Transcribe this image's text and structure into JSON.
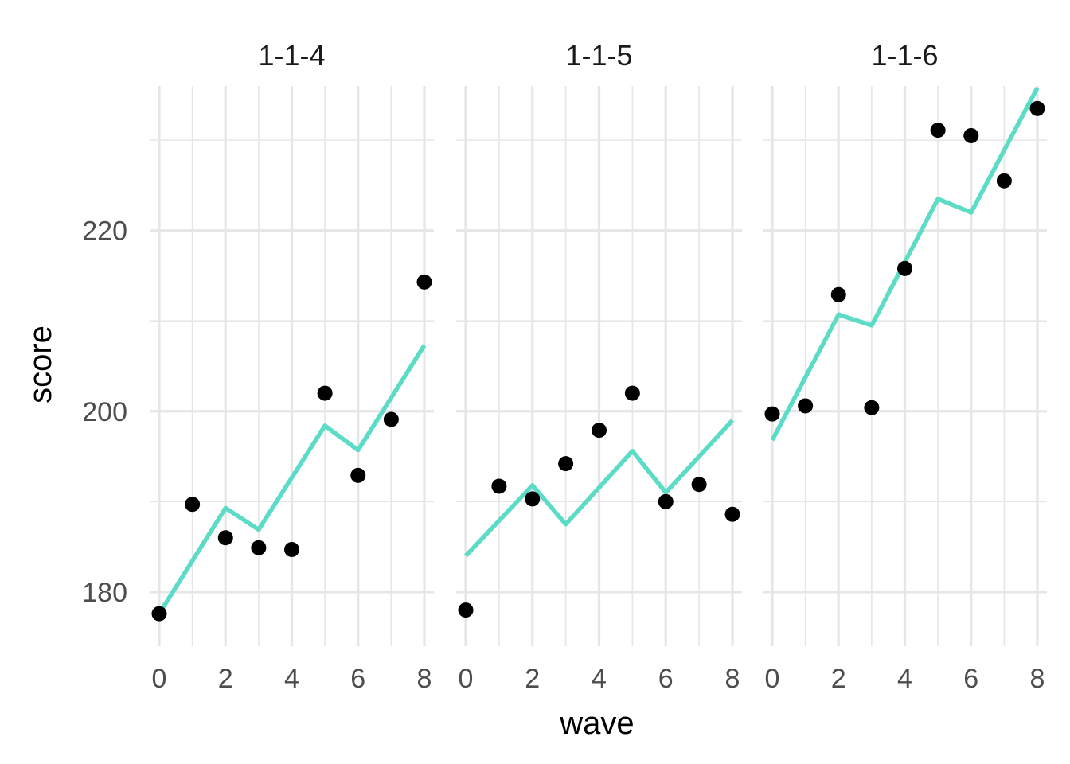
{
  "chart_data": {
    "type": "line",
    "xlabel": "wave",
    "ylabel": "score",
    "xlim": [
      0,
      8
    ],
    "ylim": [
      174,
      236
    ],
    "x_ticks": [
      "0",
      "2",
      "4",
      "6",
      "8"
    ],
    "y_ticks": [
      "180",
      "200",
      "220"
    ],
    "grid": true,
    "colors": {
      "fit_line": "#5cdcc6",
      "points": "#000000",
      "grid": "#e6e6e6"
    },
    "panels": [
      {
        "label": "1-1-4",
        "observed": [
          {
            "x": 0,
            "y": 177.6
          },
          {
            "x": 1,
            "y": 189.7
          },
          {
            "x": 2,
            "y": 186.0
          },
          {
            "x": 3,
            "y": 184.9
          },
          {
            "x": 4,
            "y": 184.7
          },
          {
            "x": 5,
            "y": 202.0
          },
          {
            "x": 6,
            "y": 192.9
          },
          {
            "x": 7,
            "y": 199.1
          },
          {
            "x": 8,
            "y": 214.3
          }
        ],
        "fitted": [
          {
            "x": 0,
            "y": 177.6
          },
          {
            "x": 2,
            "y": 189.3
          },
          {
            "x": 3,
            "y": 186.9
          },
          {
            "x": 5,
            "y": 198.4
          },
          {
            "x": 6,
            "y": 195.7
          },
          {
            "x": 8,
            "y": 207.3
          }
        ]
      },
      {
        "label": "1-1-5",
        "observed": [
          {
            "x": 0,
            "y": 178.0
          },
          {
            "x": 1,
            "y": 191.7
          },
          {
            "x": 2,
            "y": 190.3
          },
          {
            "x": 3,
            "y": 194.2
          },
          {
            "x": 4,
            "y": 197.9
          },
          {
            "x": 5,
            "y": 202.0
          },
          {
            "x": 6,
            "y": 190.0
          },
          {
            "x": 7,
            "y": 191.9
          },
          {
            "x": 8,
            "y": 188.6
          }
        ],
        "fitted": [
          {
            "x": 0,
            "y": 184.0
          },
          {
            "x": 2,
            "y": 191.8
          },
          {
            "x": 3,
            "y": 187.5
          },
          {
            "x": 5,
            "y": 195.6
          },
          {
            "x": 6,
            "y": 191.0
          },
          {
            "x": 8,
            "y": 199.0
          }
        ]
      },
      {
        "label": "1-1-6",
        "observed": [
          {
            "x": 0,
            "y": 199.7
          },
          {
            "x": 1,
            "y": 200.6
          },
          {
            "x": 2,
            "y": 212.9
          },
          {
            "x": 3,
            "y": 200.4
          },
          {
            "x": 4,
            "y": 215.8
          },
          {
            "x": 5,
            "y": 231.1
          },
          {
            "x": 6,
            "y": 230.5
          },
          {
            "x": 7,
            "y": 225.5
          },
          {
            "x": 8,
            "y": 233.5
          }
        ],
        "fitted": [
          {
            "x": 0,
            "y": 196.8
          },
          {
            "x": 2,
            "y": 210.7
          },
          {
            "x": 3,
            "y": 209.5
          },
          {
            "x": 5,
            "y": 223.5
          },
          {
            "x": 6,
            "y": 222.0
          },
          {
            "x": 8,
            "y": 235.8
          }
        ]
      }
    ]
  }
}
